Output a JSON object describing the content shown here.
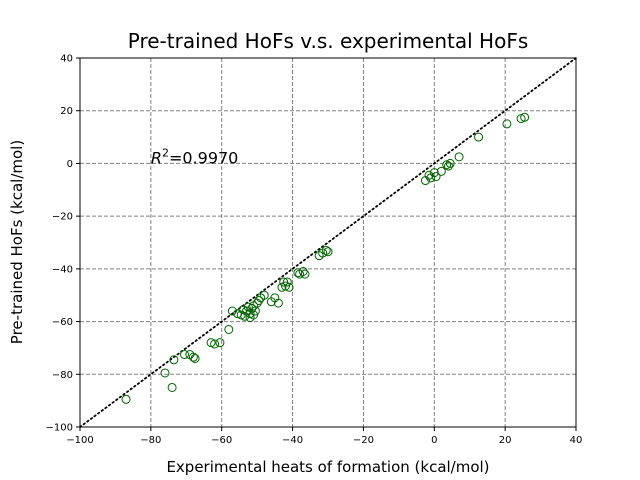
{
  "chart_data": {
    "type": "scatter",
    "title": "Pre-trained HoFs v.s. experimental HoFs",
    "xlabel": "Experimental heats of formation (kcal/mol)",
    "ylabel": "Pre-trained HoFs (kcal/mol)",
    "xlim": [
      -100,
      40
    ],
    "ylim": [
      -100,
      40
    ],
    "xticks": [
      -100,
      -80,
      -60,
      -40,
      -20,
      0,
      20,
      40
    ],
    "yticks": [
      -100,
      -80,
      -60,
      -40,
      -20,
      0,
      20,
      40
    ],
    "x_tick_labels": [
      "−100",
      "−80",
      "−60",
      "−40",
      "−20",
      "0",
      "20",
      "40"
    ],
    "y_tick_labels": [
      "−100",
      "−80",
      "−60",
      "−40",
      "−20",
      "0",
      "20",
      "40"
    ],
    "grid": true,
    "reference_line": {
      "style": "dotted",
      "color": "#000000",
      "from": [
        -100,
        -100
      ],
      "to": [
        40,
        40
      ]
    },
    "annotation": {
      "symbol": "R",
      "superscript": "2",
      "value_text": "=0.9970",
      "at": [
        -80,
        0
      ]
    },
    "marker_color": "#006400",
    "points": [
      [
        -87,
        -89.5
      ],
      [
        -76,
        -79.5
      ],
      [
        -74,
        -85
      ],
      [
        -73.5,
        -74.5
      ],
      [
        -70.5,
        -72.5
      ],
      [
        -69,
        -72.5
      ],
      [
        -68,
        -73.5
      ],
      [
        -67.5,
        -74
      ],
      [
        -63,
        -68
      ],
      [
        -62,
        -68.5
      ],
      [
        -60.5,
        -68
      ],
      [
        -58,
        -63
      ],
      [
        -57,
        -56
      ],
      [
        -55.5,
        -57
      ],
      [
        -54.5,
        -57.5
      ],
      [
        -54,
        -55.5
      ],
      [
        -53.5,
        -58
      ],
      [
        -53,
        -56
      ],
      [
        -52.5,
        -54.5
      ],
      [
        -52,
        -57
      ],
      [
        -52,
        -58.5
      ],
      [
        -51.5,
        -55
      ],
      [
        -51,
        -54
      ],
      [
        -51,
        -57.5
      ],
      [
        -50.5,
        -56
      ],
      [
        -50,
        -53
      ],
      [
        -49.5,
        -52
      ],
      [
        -49,
        -51
      ],
      [
        -48,
        -50
      ],
      [
        -46,
        -52.5
      ],
      [
        -45,
        -51
      ],
      [
        -44,
        -53
      ],
      [
        -43,
        -47
      ],
      [
        -42.5,
        -45
      ],
      [
        -42,
        -46.5
      ],
      [
        -41.5,
        -45
      ],
      [
        -41,
        -47
      ],
      [
        -38.5,
        -41.5
      ],
      [
        -38,
        -42
      ],
      [
        -37,
        -41
      ],
      [
        -36.5,
        -42
      ],
      [
        -32.5,
        -35
      ],
      [
        -31.5,
        -34
      ],
      [
        -30.5,
        -33
      ],
      [
        -30,
        -33.5
      ],
      [
        -2.5,
        -6.5
      ],
      [
        -1.5,
        -4.5
      ],
      [
        -1,
        -5.5
      ],
      [
        0,
        -3.5
      ],
      [
        0.5,
        -5
      ],
      [
        2,
        -3
      ],
      [
        3.5,
        -0.5
      ],
      [
        4,
        -1
      ],
      [
        4.5,
        0
      ],
      [
        7,
        2.5
      ],
      [
        12.5,
        10
      ],
      [
        20.5,
        15
      ],
      [
        24.5,
        17
      ],
      [
        25.5,
        17.5
      ]
    ]
  }
}
